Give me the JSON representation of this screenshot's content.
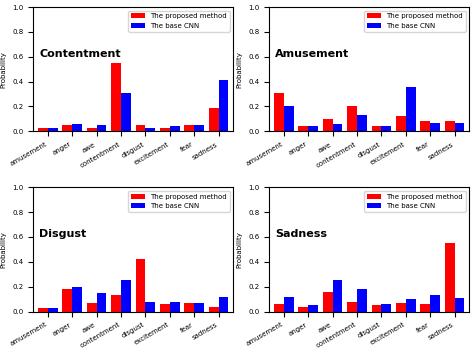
{
  "chart_data": [
    {
      "type": "bar",
      "title": "Contentment",
      "y_label": "Probability",
      "categories": [
        "amusement",
        "anger",
        "awe",
        "contentment",
        "disgust",
        "excitement",
        "fear",
        "sadness"
      ],
      "series": [
        {
          "name": "The proposed method",
          "color": "#ff0000",
          "values": [
            0.03,
            0.05,
            0.03,
            0.55,
            0.05,
            0.03,
            0.05,
            0.19
          ]
        },
        {
          "name": "The base CNN",
          "color": "#0000ff",
          "values": [
            0.03,
            0.06,
            0.05,
            0.31,
            0.03,
            0.04,
            0.05,
            0.41
          ]
        }
      ],
      "ylim": [
        0,
        1.0
      ],
      "yticks": [
        {
          "value": 0,
          "label": "0.0"
        },
        0.2,
        0.4,
        0.6,
        0.8,
        {
          "value": 1.0,
          "label": "1.0"
        }
      ],
      "legend": "upper right"
    },
    {
      "type": "bar",
      "title": "Amusement",
      "y_label": "Probability",
      "categories": [
        "amusement",
        "anger",
        "awe",
        "contentment",
        "disgust",
        "excitement",
        "fear",
        "sadness"
      ],
      "series": [
        {
          "name": "The proposed method",
          "color": "#ff0000",
          "values": [
            0.31,
            0.04,
            0.1,
            0.2,
            0.04,
            0.12,
            0.08,
            0.08
          ]
        },
        {
          "name": "The base CNN",
          "color": "#0000ff",
          "values": [
            0.2,
            0.04,
            0.06,
            0.13,
            0.04,
            0.36,
            0.07,
            0.07
          ]
        }
      ],
      "ylim": [
        0,
        1.0
      ],
      "yticks": [
        {
          "value": 0,
          "label": "0.0"
        },
        0.2,
        0.4,
        0.6,
        0.8,
        {
          "value": 1.0,
          "label": "1.0"
        }
      ],
      "legend": "upper right"
    },
    {
      "type": "bar",
      "title": "Disgust",
      "y_label": "Probability",
      "categories": [
        "amusement",
        "anger",
        "awe",
        "contentment",
        "disgust",
        "excitement",
        "fear",
        "sadness"
      ],
      "series": [
        {
          "name": "The proposed method",
          "color": "#ff0000",
          "values": [
            0.03,
            0.18,
            0.07,
            0.13,
            0.42,
            0.06,
            0.07,
            0.04
          ]
        },
        {
          "name": "The base CNN",
          "color": "#0000ff",
          "values": [
            0.03,
            0.2,
            0.15,
            0.25,
            0.08,
            0.08,
            0.07,
            0.12
          ]
        }
      ],
      "ylim": [
        0,
        1.0
      ],
      "yticks": [
        {
          "value": 0,
          "label": "0.0"
        },
        0.2,
        0.4,
        0.6,
        0.8,
        {
          "value": 1.0,
          "label": "1.0"
        }
      ],
      "legend": "upper right"
    },
    {
      "type": "bar",
      "title": "Sadness",
      "y_label": "Probability",
      "categories": [
        "amusement",
        "anger",
        "awe",
        "contentment",
        "disgust",
        "excitement",
        "fear",
        "sadness"
      ],
      "series": [
        {
          "name": "The proposed method",
          "color": "#ff0000",
          "values": [
            0.06,
            0.04,
            0.16,
            0.08,
            0.05,
            0.07,
            0.06,
            0.55
          ]
        },
        {
          "name": "The base CNN",
          "color": "#0000ff",
          "values": [
            0.12,
            0.05,
            0.25,
            0.18,
            0.06,
            0.1,
            0.13,
            0.11
          ]
        }
      ],
      "ylim": [
        0,
        1.0
      ],
      "yticks": [
        {
          "value": 0,
          "label": "0.0"
        },
        0.2,
        0.4,
        0.6,
        0.8,
        {
          "value": 1.0,
          "label": "1.0"
        }
      ],
      "legend": "upper right"
    }
  ]
}
